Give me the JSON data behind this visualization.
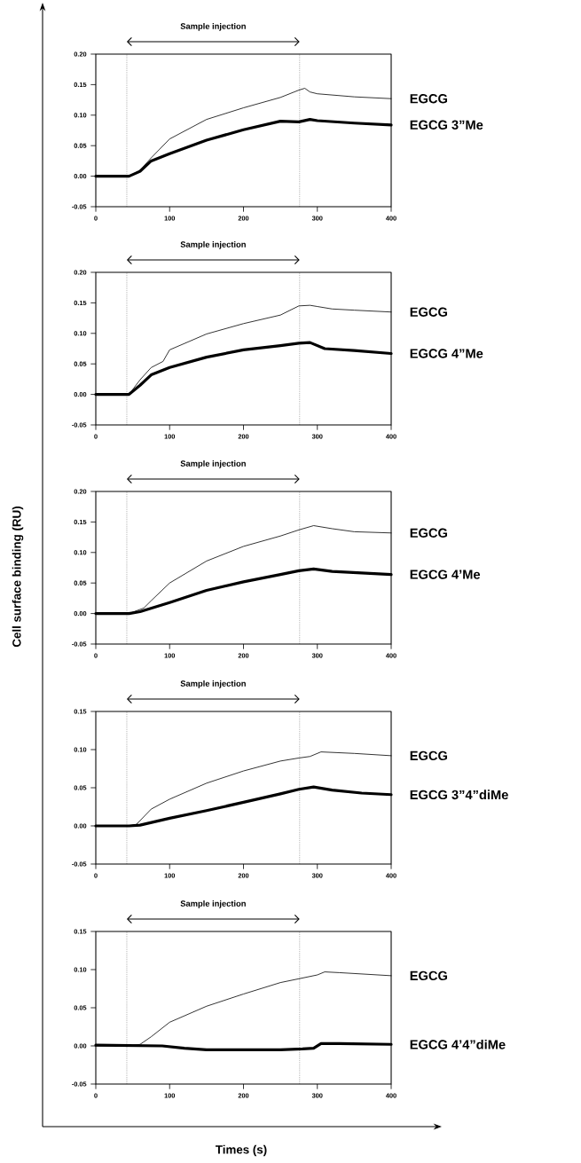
{
  "chart_data": [
    {
      "type": "line",
      "xlim": [
        0,
        400
      ],
      "ylim": [
        -0.05,
        0.2
      ],
      "xticks": [
        0,
        100,
        200,
        300,
        400
      ],
      "yticks": [
        {
          "value": -0.05,
          "label": "-0.05"
        },
        {
          "value": 0,
          "label": "0.00"
        },
        {
          "value": 0.05,
          "label": "0.05"
        },
        {
          "value": 0.1,
          "label": "0.10"
        },
        {
          "value": 0.15,
          "label": "0.15"
        },
        {
          "value": 0.2,
          "label": "0.20"
        }
      ],
      "series": [
        {
          "name": "EGCG",
          "color": "#000000",
          "x": [
            0,
            45,
            60,
            75,
            100,
            150,
            200,
            250,
            275,
            283,
            290,
            300,
            350,
            400
          ],
          "values": [
            0,
            0,
            0.01,
            0.03,
            0.061,
            0.093,
            0.112,
            0.129,
            0.141,
            0.144,
            0.138,
            0.135,
            0.13,
            0.127
          ]
        },
        {
          "name": "EGCG 3”Me",
          "color": "#000000",
          "x": [
            0,
            45,
            60,
            75,
            100,
            150,
            200,
            250,
            275,
            290,
            300,
            350,
            400
          ],
          "values": [
            0,
            0,
            0.008,
            0.025,
            0.037,
            0.059,
            0.076,
            0.09,
            0.089,
            0.093,
            0.091,
            0.087,
            0.084
          ]
        }
      ],
      "ref_lines": [
        {
          "axis": "x",
          "value": 42,
          "line_style": "dotted"
        },
        {
          "axis": "x",
          "value": 276,
          "line_style": "dotted"
        }
      ],
      "annotations": [
        "Sample injection"
      ]
    },
    {
      "type": "line",
      "xlim": [
        0,
        400
      ],
      "ylim": [
        -0.05,
        0.2
      ],
      "xticks": [
        0,
        100,
        200,
        300,
        400
      ],
      "yticks": [
        {
          "value": -0.05,
          "label": "-0.05"
        },
        {
          "value": 0,
          "label": "0.00"
        },
        {
          "value": 0.05,
          "label": "0.05"
        },
        {
          "value": 0.1,
          "label": "0.10"
        },
        {
          "value": 0.15,
          "label": "0.15"
        },
        {
          "value": 0.2,
          "label": "0.20"
        }
      ],
      "series": [
        {
          "name": "EGCG",
          "color": "#000000",
          "x": [
            0,
            45,
            60,
            75,
            91,
            100,
            150,
            200,
            250,
            275,
            290,
            300,
            320,
            350,
            400
          ],
          "values": [
            0,
            0,
            0.024,
            0.044,
            0.054,
            0.073,
            0.099,
            0.116,
            0.13,
            0.145,
            0.146,
            0.144,
            0.14,
            0.138,
            0.135
          ]
        },
        {
          "name": "EGCG 4”Me",
          "color": "#000000",
          "x": [
            0,
            45,
            60,
            75,
            100,
            150,
            200,
            250,
            275,
            290,
            310,
            350,
            400
          ],
          "values": [
            0,
            0,
            0.015,
            0.032,
            0.044,
            0.061,
            0.073,
            0.08,
            0.084,
            0.085,
            0.075,
            0.072,
            0.067
          ]
        }
      ],
      "ref_lines": [
        {
          "axis": "x",
          "value": 42,
          "line_style": "dotted"
        },
        {
          "axis": "x",
          "value": 276,
          "line_style": "dotted"
        }
      ],
      "annotations": [
        "Sample injection"
      ]
    },
    {
      "type": "line",
      "xlim": [
        0,
        400
      ],
      "ylim": [
        -0.05,
        0.2
      ],
      "xticks": [
        0,
        100,
        200,
        300,
        400
      ],
      "yticks": [
        {
          "value": -0.05,
          "label": "-0.05"
        },
        {
          "value": 0,
          "label": "0.00"
        },
        {
          "value": 0.05,
          "label": "0.05"
        },
        {
          "value": 0.1,
          "label": "0.10"
        },
        {
          "value": 0.15,
          "label": "0.15"
        },
        {
          "value": 0.2,
          "label": "0.20"
        }
      ],
      "series": [
        {
          "name": "EGCG",
          "color": "#000000",
          "x": [
            0,
            45,
            65,
            75,
            100,
            150,
            200,
            250,
            275,
            295,
            320,
            350,
            400
          ],
          "values": [
            0,
            0,
            0.009,
            0.021,
            0.05,
            0.086,
            0.11,
            0.127,
            0.137,
            0.144,
            0.139,
            0.134,
            0.132
          ]
        },
        {
          "name": "EGCG 4’Me",
          "color": "#000000",
          "x": [
            0,
            45,
            60,
            100,
            150,
            200,
            250,
            275,
            295,
            320,
            400
          ],
          "values": [
            0,
            0,
            0.003,
            0.018,
            0.038,
            0.052,
            0.064,
            0.07,
            0.073,
            0.069,
            0.064
          ]
        }
      ],
      "ref_lines": [
        {
          "axis": "x",
          "value": 42,
          "line_style": "dotted"
        },
        {
          "axis": "x",
          "value": 276,
          "line_style": "dotted"
        }
      ],
      "annotations": [
        "Sample injection"
      ],
      "ylabel": "Cell surface binding (RU)"
    },
    {
      "type": "line",
      "xlim": [
        0,
        400
      ],
      "ylim": [
        -0.05,
        0.15
      ],
      "xticks": [
        0,
        100,
        200,
        300,
        400
      ],
      "yticks": [
        {
          "value": -0.05,
          "label": "-0.05"
        },
        {
          "value": 0,
          "label": "0.00"
        },
        {
          "value": 0.05,
          "label": "0.05"
        },
        {
          "value": 0.1,
          "label": "0.10"
        },
        {
          "value": 0.15,
          "label": "0.15"
        }
      ],
      "series": [
        {
          "name": "EGCG",
          "color": "#000000",
          "x": [
            0,
            45,
            55,
            75,
            100,
            150,
            200,
            250,
            275,
            290,
            305,
            350,
            400
          ],
          "values": [
            0,
            0,
            0.002,
            0.022,
            0.035,
            0.056,
            0.072,
            0.085,
            0.089,
            0.091,
            0.097,
            0.095,
            0.092
          ]
        },
        {
          "name": "EGCG 3”4”diMe",
          "color": "#000000",
          "x": [
            0,
            45,
            60,
            100,
            150,
            200,
            250,
            275,
            295,
            320,
            360,
            400
          ],
          "values": [
            0,
            0,
            0.001,
            0.01,
            0.02,
            0.031,
            0.042,
            0.048,
            0.051,
            0.047,
            0.043,
            0.041
          ]
        }
      ],
      "ref_lines": [
        {
          "axis": "x",
          "value": 42,
          "line_style": "dotted"
        },
        {
          "axis": "x",
          "value": 276,
          "line_style": "dotted"
        }
      ],
      "annotations": [
        "Sample injection"
      ]
    },
    {
      "type": "line",
      "xlim": [
        0,
        400
      ],
      "ylim": [
        -0.05,
        0.15
      ],
      "xticks": [
        0,
        100,
        200,
        300,
        400
      ],
      "yticks": [
        {
          "value": -0.05,
          "label": "-0.05"
        },
        {
          "value": 0,
          "label": "0.00"
        },
        {
          "value": 0.05,
          "label": "0.05"
        },
        {
          "value": 0.1,
          "label": "0.10"
        },
        {
          "value": 0.15,
          "label": "0.15"
        }
      ],
      "series": [
        {
          "name": "EGCG",
          "color": "#000000",
          "x": [
            0,
            45,
            60,
            75,
            100,
            150,
            200,
            250,
            275,
            300,
            310,
            330,
            400
          ],
          "values": [
            0,
            0,
            0.002,
            0.012,
            0.031,
            0.052,
            0.068,
            0.083,
            0.088,
            0.093,
            0.097,
            0.096,
            0.092
          ]
        },
        {
          "name": "EGCG 4’4”diMe",
          "color": "#000000",
          "x": [
            0,
            90,
            120,
            150,
            200,
            250,
            280,
            295,
            305,
            330,
            400
          ],
          "values": [
            0.001,
            0,
            -0.003,
            -0.005,
            -0.005,
            -0.005,
            -0.004,
            -0.003,
            0.003,
            0.003,
            0.002
          ]
        }
      ],
      "ref_lines": [
        {
          "axis": "x",
          "value": 42,
          "line_style": "dotted"
        },
        {
          "axis": "x",
          "value": 276,
          "line_style": "dotted"
        }
      ],
      "annotations": [
        "Sample injection"
      ],
      "xlabel": "Times (s)"
    }
  ]
}
